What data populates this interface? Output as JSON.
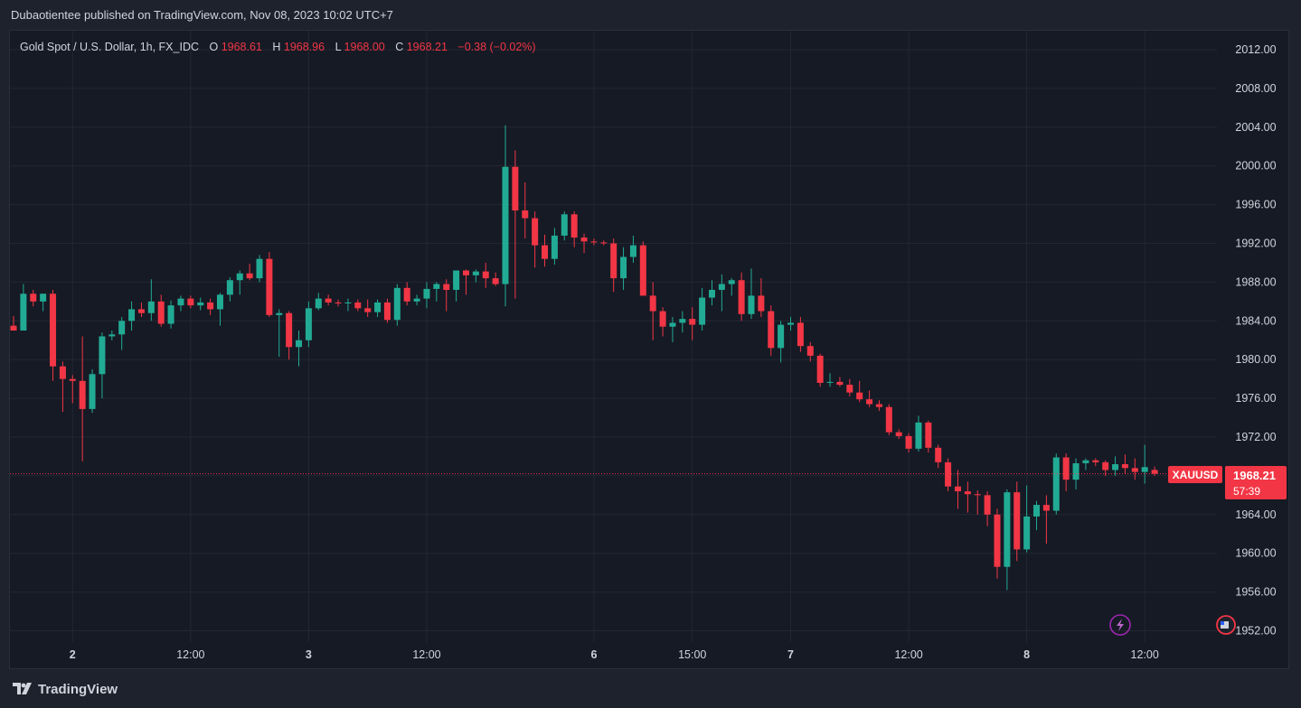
{
  "header": {
    "published": "Dubaotientee published on TradingView.com, Nov 08, 2023 10:02 UTC+7"
  },
  "legend": {
    "symbol": "Gold Spot / U.S. Dollar, 1h, FX_IDC",
    "o_label": "O",
    "o_value": "1968.61",
    "h_label": "H",
    "h_value": "1968.96",
    "l_label": "L",
    "l_value": "1968.00",
    "c_label": "C",
    "c_value": "1968.21",
    "change": "−0.38 (−0.02%)"
  },
  "price_tag": {
    "symbol": "XAUUSD",
    "price": "1968.21",
    "countdown": "57:39"
  },
  "footer": {
    "brand": "TradingView"
  },
  "colors": {
    "up": "#22ab94",
    "down": "#f23645",
    "background": "#161a25",
    "grid": "#232733",
    "text": "#d1d4dc"
  },
  "chart_data": {
    "type": "candlestick",
    "ylim": [
      1950,
      2014
    ],
    "y_ticks": [
      "2012.00",
      "2008.00",
      "2004.00",
      "2000.00",
      "1996.00",
      "1992.00",
      "1988.00",
      "1984.00",
      "1980.00",
      "1976.00",
      "1972.00",
      "1968.00",
      "1964.00",
      "1960.00",
      "1956.00",
      "1952.00"
    ],
    "x_ticks": [
      {
        "label": "2",
        "index": 6,
        "bold": true
      },
      {
        "label": "12:00",
        "index": 18,
        "bold": false
      },
      {
        "label": "3",
        "index": 30,
        "bold": true
      },
      {
        "label": "12:00",
        "index": 42,
        "bold": false
      },
      {
        "label": "6",
        "index": 59,
        "bold": true
      },
      {
        "label": "15:00",
        "index": 69,
        "bold": false
      },
      {
        "label": "7",
        "index": 79,
        "bold": true
      },
      {
        "label": "12:00",
        "index": 91,
        "bold": false
      },
      {
        "label": "8",
        "index": 103,
        "bold": true
      },
      {
        "label": "12:00",
        "index": 115,
        "bold": false
      }
    ],
    "candles": [
      [
        1983.5,
        1984.5,
        1983.0,
        1983.0
      ],
      [
        1983.0,
        1987.8,
        1983.0,
        1986.8
      ],
      [
        1986.8,
        1987.2,
        1985.5,
        1986.0
      ],
      [
        1986.0,
        1986.8,
        1985.0,
        1986.8
      ],
      [
        1986.8,
        1987.2,
        1977.8,
        1979.3
      ],
      [
        1979.3,
        1979.8,
        1974.6,
        1978.0
      ],
      [
        1978.0,
        1978.4,
        1975.5,
        1977.8
      ],
      [
        1977.8,
        1982.4,
        1969.5,
        1974.9
      ],
      [
        1974.9,
        1979.0,
        1974.5,
        1978.5
      ],
      [
        1978.5,
        1982.8,
        1976.0,
        1982.4
      ],
      [
        1982.4,
        1983.0,
        1982.0,
        1982.6
      ],
      [
        1982.6,
        1984.4,
        1981.0,
        1984.0
      ],
      [
        1984.0,
        1986.0,
        1983.0,
        1985.2
      ],
      [
        1985.2,
        1985.9,
        1984.4,
        1984.8
      ],
      [
        1984.8,
        1988.3,
        1984.0,
        1986.0
      ],
      [
        1986.0,
        1986.7,
        1983.4,
        1983.7
      ],
      [
        1983.7,
        1986.1,
        1983.2,
        1985.6
      ],
      [
        1985.6,
        1986.6,
        1985.0,
        1986.3
      ],
      [
        1986.3,
        1986.6,
        1985.3,
        1985.6
      ],
      [
        1985.6,
        1986.4,
        1985.1,
        1985.9
      ],
      [
        1985.9,
        1986.3,
        1984.6,
        1985.2
      ],
      [
        1985.2,
        1986.9,
        1983.5,
        1986.7
      ],
      [
        1986.7,
        1988.5,
        1986.0,
        1988.2
      ],
      [
        1988.2,
        1989.2,
        1986.7,
        1988.9
      ],
      [
        1988.9,
        1989.9,
        1988.2,
        1988.4
      ],
      [
        1988.4,
        1990.8,
        1988.0,
        1990.4
      ],
      [
        1990.4,
        1991.1,
        1984.4,
        1984.6
      ],
      [
        1984.6,
        1985.2,
        1980.3,
        1984.8
      ],
      [
        1984.8,
        1985.0,
        1980.0,
        1981.3
      ],
      [
        1981.3,
        1983.0,
        1979.3,
        1982.0
      ],
      [
        1982.0,
        1986.0,
        1981.3,
        1985.3
      ],
      [
        1985.3,
        1986.9,
        1985.1,
        1986.3
      ],
      [
        1986.3,
        1986.7,
        1985.6,
        1985.9
      ],
      [
        1985.9,
        1986.2,
        1985.5,
        1985.8
      ],
      [
        1985.8,
        1986.3,
        1985.0,
        1985.9
      ],
      [
        1985.9,
        1986.2,
        1985.0,
        1985.3
      ],
      [
        1985.3,
        1986.2,
        1984.4,
        1984.9
      ],
      [
        1984.9,
        1986.2,
        1984.4,
        1985.9
      ],
      [
        1985.9,
        1986.3,
        1983.8,
        1984.1
      ],
      [
        1984.1,
        1987.8,
        1983.5,
        1987.4
      ],
      [
        1987.4,
        1988.0,
        1985.6,
        1986.0
      ],
      [
        1986.0,
        1986.7,
        1985.6,
        1986.3
      ],
      [
        1986.3,
        1988.0,
        1985.3,
        1987.3
      ],
      [
        1987.3,
        1988.0,
        1986.0,
        1987.8
      ],
      [
        1987.8,
        1988.3,
        1985.0,
        1987.2
      ],
      [
        1987.2,
        1988.7,
        1986.0,
        1989.2
      ],
      [
        1989.2,
        1989.3,
        1986.7,
        1988.7
      ],
      [
        1988.7,
        1989.3,
        1988.0,
        1989.1
      ],
      [
        1989.1,
        1990.0,
        1987.4,
        1988.4
      ],
      [
        1988.4,
        1989.0,
        1987.6,
        1987.8
      ],
      [
        1987.8,
        2004.2,
        1985.5,
        1999.9
      ],
      [
        1999.9,
        2001.6,
        1986.3,
        1995.4
      ],
      [
        1995.4,
        1998.3,
        1992.5,
        1994.6
      ],
      [
        1994.6,
        1995.3,
        1989.5,
        1991.8
      ],
      [
        1991.8,
        1992.9,
        1989.6,
        1990.4
      ],
      [
        1990.4,
        1993.6,
        1989.8,
        1992.8
      ],
      [
        1992.8,
        1995.3,
        1992.3,
        1995.0
      ],
      [
        1995.0,
        1995.3,
        1991.6,
        1992.6
      ],
      [
        1992.6,
        1993.0,
        1991.0,
        1992.2
      ],
      [
        1992.2,
        1992.5,
        1991.8,
        1992.1
      ],
      [
        1992.1,
        1992.3,
        1991.8,
        1992.0
      ],
      [
        1992.0,
        1992.5,
        1987.0,
        1988.4
      ],
      [
        1988.4,
        1991.6,
        1987.2,
        1990.6
      ],
      [
        1990.6,
        1992.8,
        1990.0,
        1991.8
      ],
      [
        1991.8,
        1992.2,
        1986.6,
        1986.6
      ],
      [
        1986.6,
        1988.0,
        1982.0,
        1985.0
      ],
      [
        1985.0,
        1985.4,
        1982.4,
        1983.4
      ],
      [
        1983.4,
        1984.4,
        1981.8,
        1983.8
      ],
      [
        1983.8,
        1985.0,
        1982.8,
        1984.2
      ],
      [
        1984.2,
        1985.4,
        1982.0,
        1983.6
      ],
      [
        1983.6,
        1987.4,
        1983.0,
        1986.4
      ],
      [
        1986.4,
        1988.2,
        1985.6,
        1987.2
      ],
      [
        1987.2,
        1988.8,
        1985.0,
        1987.8
      ],
      [
        1987.8,
        1988.4,
        1986.6,
        1988.2
      ],
      [
        1988.2,
        1989.0,
        1984.0,
        1984.7
      ],
      [
        1984.7,
        1989.4,
        1984.2,
        1986.6
      ],
      [
        1986.6,
        1988.4,
        1984.4,
        1985.0
      ],
      [
        1985.0,
        1985.6,
        1980.4,
        1981.2
      ],
      [
        1981.2,
        1984.0,
        1979.7,
        1983.6
      ],
      [
        1983.6,
        1984.4,
        1983.0,
        1983.8
      ],
      [
        1983.8,
        1984.4,
        1980.8,
        1981.4
      ],
      [
        1981.4,
        1981.8,
        1979.8,
        1980.4
      ],
      [
        1980.4,
        1980.6,
        1977.2,
        1977.6
      ],
      [
        1977.6,
        1978.6,
        1977.2,
        1977.7
      ],
      [
        1977.7,
        1978.2,
        1977.2,
        1977.4
      ],
      [
        1977.4,
        1978.0,
        1976.2,
        1976.6
      ],
      [
        1976.6,
        1977.8,
        1975.6,
        1975.9
      ],
      [
        1975.9,
        1976.8,
        1975.1,
        1975.4
      ],
      [
        1975.4,
        1975.8,
        1974.7,
        1975.1
      ],
      [
        1975.1,
        1975.4,
        1972.2,
        1972.5
      ],
      [
        1972.5,
        1972.8,
        1971.8,
        1972.1
      ],
      [
        1972.1,
        1972.4,
        1970.4,
        1970.8
      ],
      [
        1970.8,
        1974.2,
        1970.5,
        1973.5
      ],
      [
        1973.5,
        1973.7,
        1970.4,
        1970.9
      ],
      [
        1970.9,
        1971.2,
        1968.8,
        1969.4
      ],
      [
        1969.4,
        1969.8,
        1966.4,
        1966.9
      ],
      [
        1966.9,
        1968.6,
        1964.6,
        1966.4
      ],
      [
        1966.4,
        1967.4,
        1964.2,
        1966.1
      ],
      [
        1966.1,
        1966.5,
        1964.0,
        1966.0
      ],
      [
        1966.0,
        1966.4,
        1962.8,
        1964.0
      ],
      [
        1964.0,
        1964.6,
        1957.4,
        1958.6
      ],
      [
        1958.6,
        1966.6,
        1956.2,
        1966.3
      ],
      [
        1966.3,
        1967.4,
        1959.2,
        1960.4
      ],
      [
        1960.4,
        1967.0,
        1960.1,
        1963.8
      ],
      [
        1963.8,
        1965.4,
        1962.4,
        1965.0
      ],
      [
        1965.0,
        1966.0,
        1961.0,
        1964.4
      ],
      [
        1964.4,
        1970.3,
        1964.0,
        1969.9
      ],
      [
        1969.9,
        1970.3,
        1966.4,
        1967.6
      ],
      [
        1967.6,
        1969.8,
        1966.6,
        1969.3
      ],
      [
        1969.3,
        1969.8,
        1968.6,
        1969.6
      ],
      [
        1969.6,
        1969.8,
        1969.0,
        1969.4
      ],
      [
        1969.4,
        1969.6,
        1968.0,
        1968.6
      ],
      [
        1968.6,
        1970.0,
        1968.0,
        1969.2
      ],
      [
        1969.2,
        1970.2,
        1968.2,
        1968.8
      ],
      [
        1968.8,
        1969.8,
        1967.6,
        1968.4
      ],
      [
        1968.4,
        1971.2,
        1967.2,
        1968.9
      ],
      [
        1968.61,
        1968.96,
        1968.0,
        1968.21
      ]
    ],
    "last_price": 1968.21
  }
}
